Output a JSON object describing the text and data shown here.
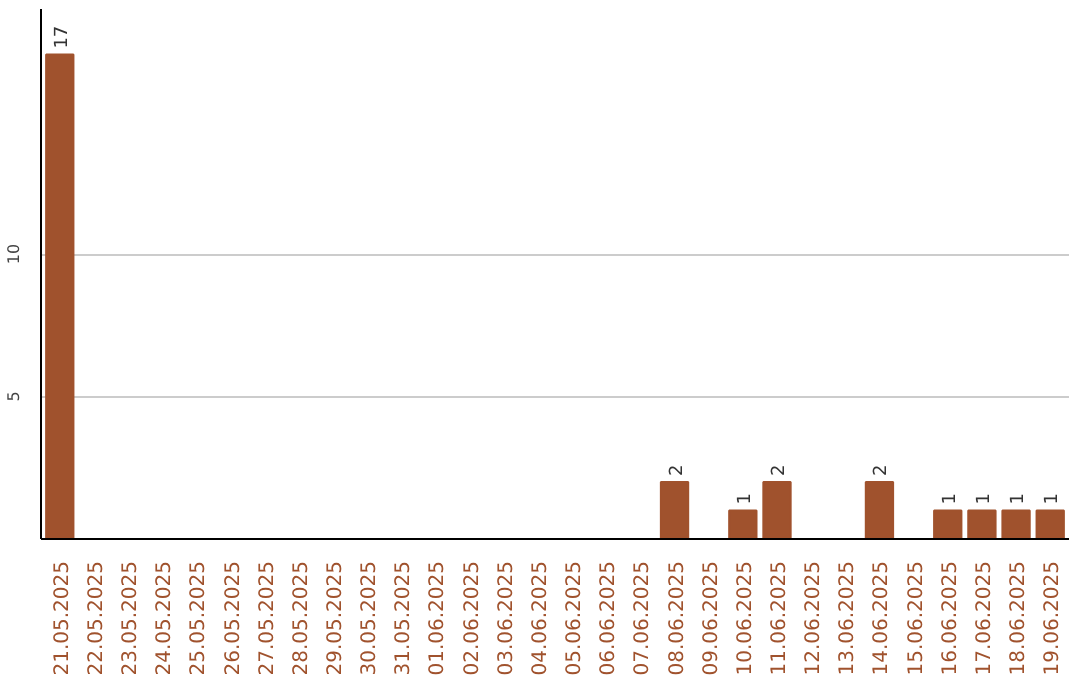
{
  "chart_data": {
    "type": "bar",
    "categories": [
      "21.05.2025",
      "22.05.2025",
      "23.05.2025",
      "24.05.2025",
      "25.05.2025",
      "26.05.2025",
      "27.05.2025",
      "28.05.2025",
      "29.05.2025",
      "30.05.2025",
      "31.05.2025",
      "01.06.2025",
      "02.06.2025",
      "03.06.2025",
      "04.06.2025",
      "05.06.2025",
      "06.06.2025",
      "07.06.2025",
      "08.06.2025",
      "09.06.2025",
      "10.06.2025",
      "11.06.2025",
      "12.06.2025",
      "13.06.2025",
      "14.06.2025",
      "15.06.2025",
      "16.06.2025",
      "17.06.2025",
      "18.06.2025",
      "19.06.2025"
    ],
    "values": [
      17,
      0,
      0,
      0,
      0,
      0,
      0,
      0,
      0,
      0,
      0,
      0,
      0,
      0,
      0,
      0,
      0,
      0,
      2,
      0,
      1,
      2,
      0,
      0,
      2,
      0,
      1,
      1,
      1,
      1
    ],
    "value_labels": [
      "17",
      null,
      null,
      null,
      null,
      null,
      null,
      null,
      null,
      null,
      null,
      null,
      null,
      null,
      null,
      null,
      null,
      null,
      "2",
      null,
      "1",
      "2",
      null,
      null,
      "2",
      null,
      "1",
      "1",
      "1",
      "1"
    ],
    "color": "#a0522d",
    "ylim": [
      0,
      18.6
    ],
    "yticks": [
      5,
      10
    ],
    "grid": "y"
  }
}
